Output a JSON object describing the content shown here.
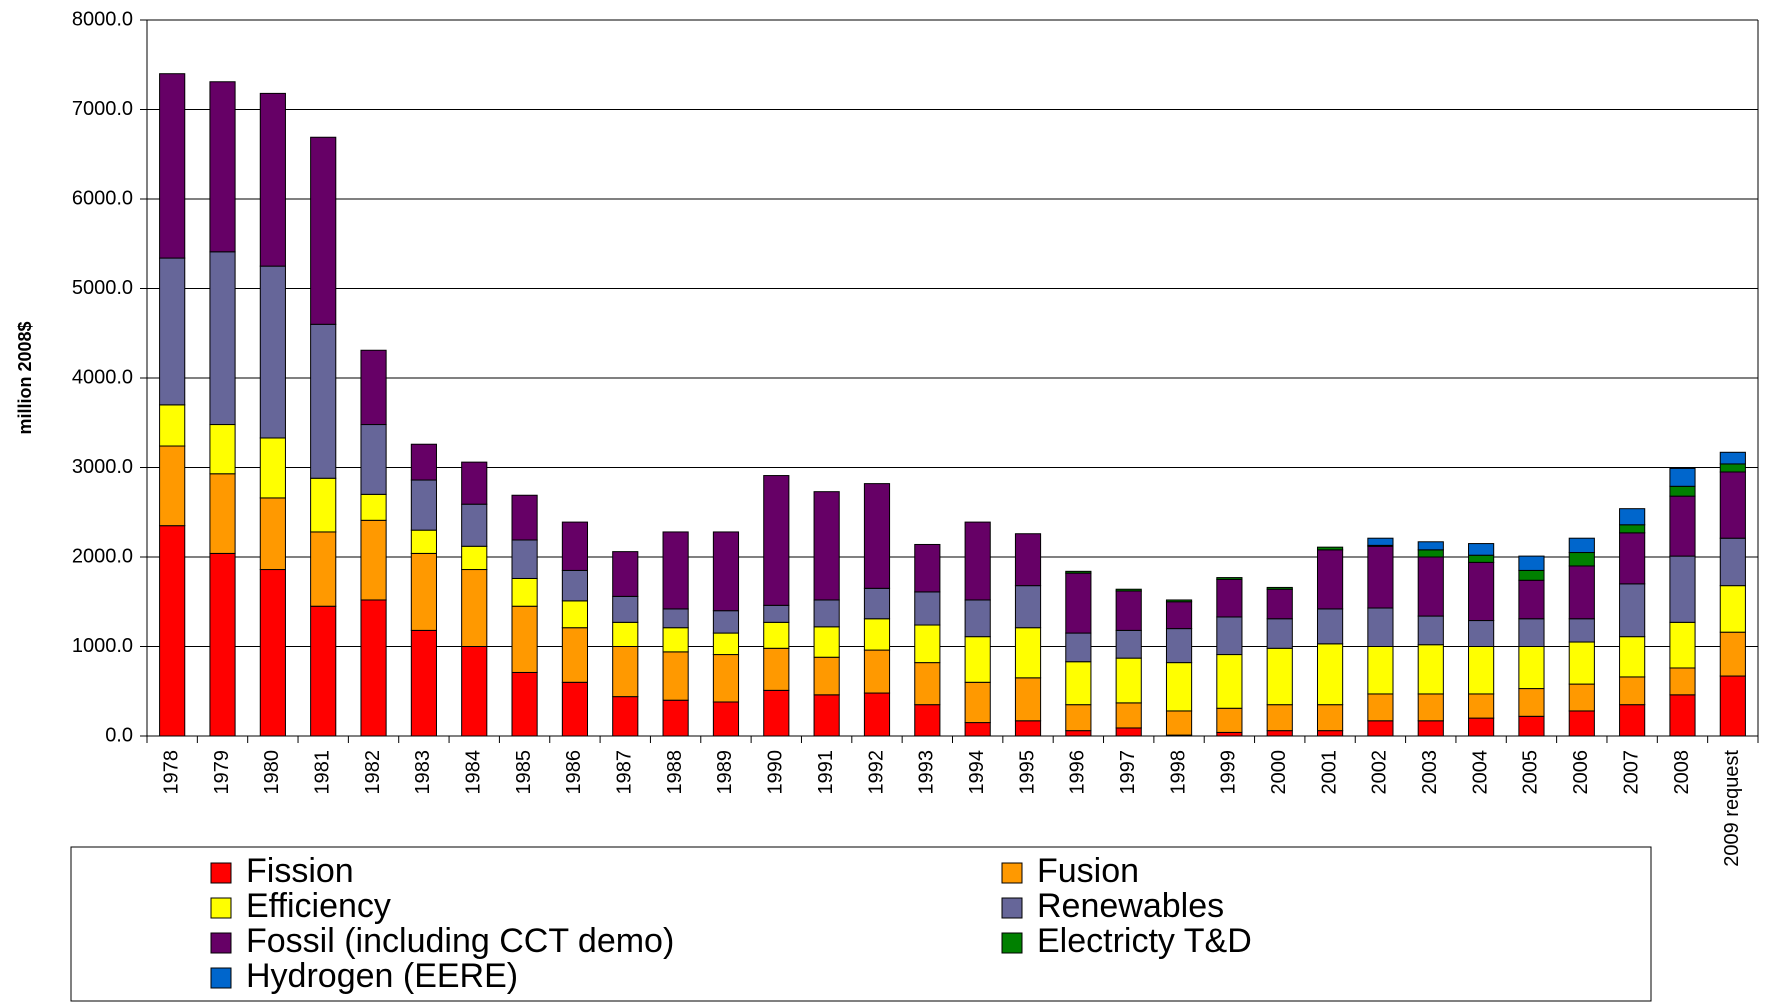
{
  "chart_data": {
    "type": "stacked_bar",
    "y_label": "million 2008$",
    "categories": [
      "1978",
      "1979",
      "1980",
      "1981",
      "1982",
      "1983",
      "1984",
      "1985",
      "1986",
      "1987",
      "1988",
      "1989",
      "1990",
      "1991",
      "1992",
      "1993",
      "1994",
      "1995",
      "1996",
      "1997",
      "1998",
      "1999",
      "2000",
      "2001",
      "2002",
      "2003",
      "2004",
      "2005",
      "2006",
      "2007",
      "2008",
      "2009 request"
    ],
    "ylim": [
      0,
      8000
    ],
    "yticks": [
      {
        "value": 0,
        "label": "0.0"
      },
      {
        "value": 1000,
        "label": "1000.0"
      },
      {
        "value": 2000,
        "label": "2000.0"
      },
      {
        "value": 3000,
        "label": "3000.0"
      },
      {
        "value": 4000,
        "label": "4000.0"
      },
      {
        "value": 5000,
        "label": "5000.0"
      },
      {
        "value": 6000,
        "label": "6000.0"
      },
      {
        "value": 7000,
        "label": "7000.0"
      },
      {
        "value": 8000,
        "label": "8000.0"
      }
    ],
    "grid": true,
    "series": [
      {
        "name": "Fission",
        "color": "#ff0000",
        "values": [
          2350,
          2040,
          1860,
          1450,
          1520,
          1180,
          1000,
          710,
          600,
          440,
          400,
          380,
          510,
          460,
          480,
          350,
          150,
          170,
          60,
          90,
          10,
          40,
          60,
          60,
          170,
          170,
          200,
          220,
          280,
          350,
          460,
          670
        ]
      },
      {
        "name": "Fusion",
        "color": "#ff9900",
        "values": [
          890,
          890,
          800,
          830,
          890,
          860,
          860,
          740,
          610,
          560,
          540,
          530,
          470,
          420,
          480,
          470,
          450,
          480,
          290,
          280,
          270,
          270,
          290,
          290,
          300,
          300,
          270,
          310,
          300,
          310,
          300,
          490
        ]
      },
      {
        "name": "Efficiency",
        "color": "#ffff00",
        "values": [
          460,
          550,
          670,
          600,
          290,
          260,
          260,
          310,
          300,
          270,
          270,
          240,
          290,
          340,
          350,
          420,
          510,
          560,
          480,
          500,
          540,
          600,
          630,
          680,
          530,
          550,
          530,
          470,
          470,
          450,
          510,
          520
        ]
      },
      {
        "name": "Renewables",
        "color": "#666699",
        "values": [
          1640,
          1930,
          1920,
          1720,
          780,
          560,
          470,
          430,
          340,
          290,
          210,
          250,
          190,
          300,
          340,
          370,
          410,
          470,
          320,
          310,
          380,
          420,
          330,
          390,
          430,
          320,
          290,
          310,
          260,
          590,
          740,
          530
        ]
      },
      {
        "name": "Fossil (including CCT demo)",
        "color": "#660066",
        "values": [
          2060,
          1900,
          1930,
          2090,
          830,
          400,
          470,
          500,
          540,
          500,
          860,
          880,
          1450,
          1210,
          1170,
          530,
          870,
          580,
          670,
          440,
          300,
          420,
          330,
          660,
          690,
          660,
          650,
          430,
          590,
          570,
          670,
          740
        ]
      },
      {
        "name": "Electricty T&D",
        "color": "#008000",
        "values": [
          0,
          0,
          0,
          0,
          0,
          0,
          0,
          0,
          0,
          0,
          0,
          0,
          0,
          0,
          0,
          0,
          0,
          0,
          20,
          20,
          20,
          20,
          20,
          30,
          10,
          80,
          80,
          110,
          150,
          90,
          110,
          90
        ]
      },
      {
        "name": "Hydrogen (EERE)",
        "color": "#0066cc",
        "values": [
          0,
          0,
          0,
          0,
          0,
          0,
          0,
          0,
          0,
          0,
          0,
          0,
          0,
          0,
          0,
          0,
          0,
          0,
          0,
          0,
          0,
          0,
          0,
          0,
          80,
          90,
          130,
          160,
          160,
          180,
          200,
          130
        ]
      }
    ]
  }
}
